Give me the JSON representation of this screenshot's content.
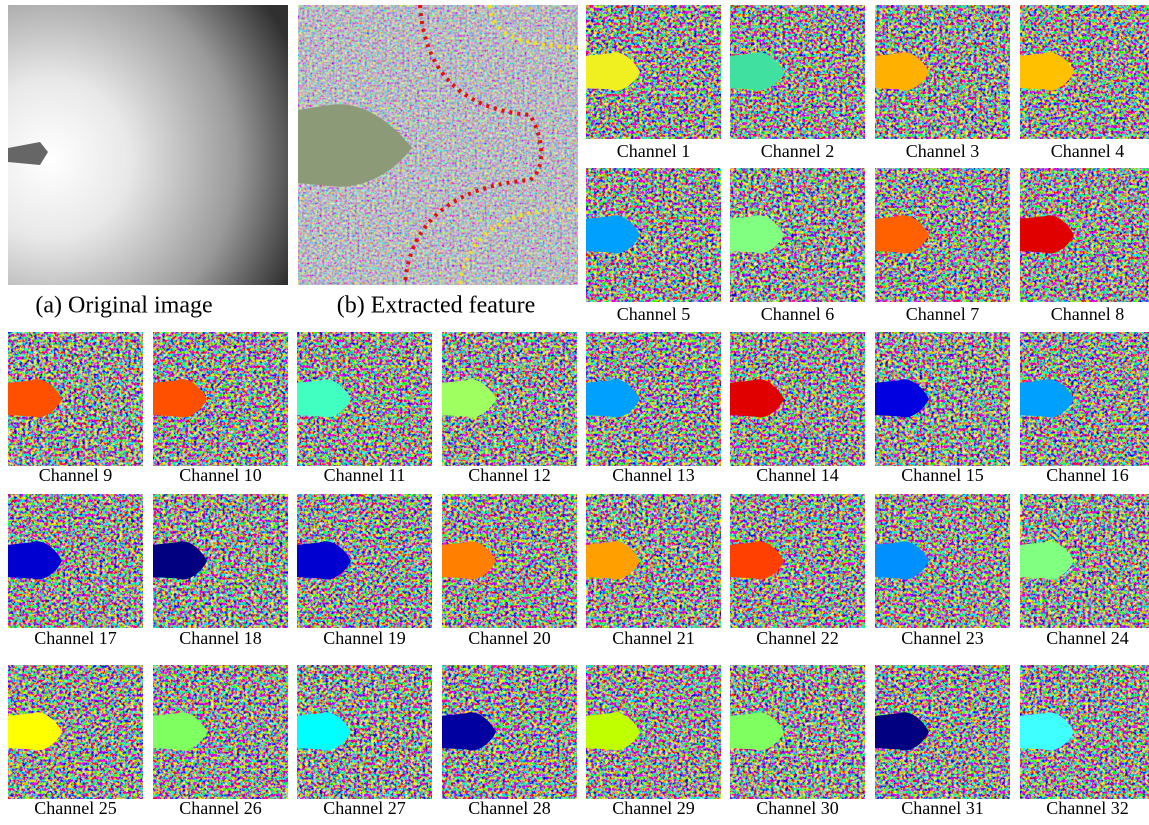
{
  "captions": {
    "a": "(a) Original image",
    "b": "(b) Extracted feature"
  },
  "channels": [
    {
      "label": "Channel 1",
      "color": "#f0f020"
    },
    {
      "label": "Channel 2",
      "color": "#40e0a0"
    },
    {
      "label": "Channel 3",
      "color": "#ffb000"
    },
    {
      "label": "Channel 4",
      "color": "#ffc000"
    },
    {
      "label": "Channel 5",
      "color": "#00a0ff"
    },
    {
      "label": "Channel 6",
      "color": "#80ff80"
    },
    {
      "label": "Channel 7",
      "color": "#ff6000"
    },
    {
      "label": "Channel 8",
      "color": "#e00000"
    },
    {
      "label": "Channel 9",
      "color": "#ff5000"
    },
    {
      "label": "Channel 10",
      "color": "#ff5000"
    },
    {
      "label": "Channel 11",
      "color": "#40ffc0"
    },
    {
      "label": "Channel 12",
      "color": "#a0ff60"
    },
    {
      "label": "Channel 13",
      "color": "#00a0ff"
    },
    {
      "label": "Channel 14",
      "color": "#e00000"
    },
    {
      "label": "Channel 15",
      "color": "#0000e0"
    },
    {
      "label": "Channel 16",
      "color": "#00a0ff"
    },
    {
      "label": "Channel 17",
      "color": "#0000d0"
    },
    {
      "label": "Channel 18",
      "color": "#000080"
    },
    {
      "label": "Channel 19",
      "color": "#0000d0"
    },
    {
      "label": "Channel 20",
      "color": "#ff8000"
    },
    {
      "label": "Channel 21",
      "color": "#ffa000"
    },
    {
      "label": "Channel 22",
      "color": "#ff4000"
    },
    {
      "label": "Channel 23",
      "color": "#0090ff"
    },
    {
      "label": "Channel 24",
      "color": "#80ff80"
    },
    {
      "label": "Channel 25",
      "color": "#ffff00"
    },
    {
      "label": "Channel 26",
      "color": "#80ff60"
    },
    {
      "label": "Channel 27",
      "color": "#00ffff"
    },
    {
      "label": "Channel 28",
      "color": "#0000a0"
    },
    {
      "label": "Channel 29",
      "color": "#c0ff00"
    },
    {
      "label": "Channel 30",
      "color": "#80ff60"
    },
    {
      "label": "Channel 31",
      "color": "#000080"
    },
    {
      "label": "Channel 32",
      "color": "#40ffff"
    }
  ]
}
